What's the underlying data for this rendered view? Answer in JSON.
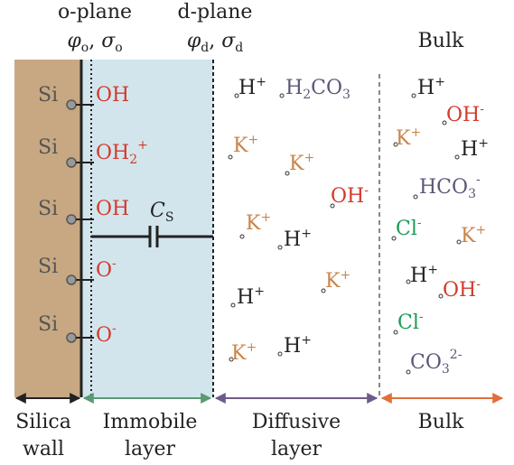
{
  "colors": {
    "wall": "#c8a882",
    "immobile": "#d3e5ec",
    "red": "#d23a2c",
    "orange": "#c8854a",
    "purple": "#5a5778",
    "green": "#1a9a55",
    "dark": "#222222",
    "grey": "#666666",
    "arrow_wall": "#222222",
    "arrow_immobile": "#5a9a72",
    "arrow_diffusive": "#6e5a8a",
    "arrow_bulk": "#e0703a"
  },
  "header": {
    "o_plane": "o-plane",
    "o_phi": "φ",
    "o_sub": "o",
    "o_sigma": "σ",
    "o_sub2": "o",
    "d_plane": "d-plane",
    "d_phi": "φ",
    "d_sub": "d",
    "d_sigma": "σ",
    "d_sub2": "d",
    "bulk": "Bulk"
  },
  "surface_sites": [
    {
      "si": "Si",
      "group": "OH",
      "sub": "",
      "sup": ""
    },
    {
      "si": "Si",
      "group": "OH",
      "sub": "2",
      "sup": "+"
    },
    {
      "si": "Si",
      "group": "OH",
      "sub": "",
      "sup": ""
    },
    {
      "si": "Si",
      "group": "O",
      "sub": "",
      "sup": "-"
    },
    {
      "si": "Si",
      "group": "O",
      "sub": "",
      "sup": "-"
    }
  ],
  "capacitor": {
    "symbol": "C",
    "sub": "S"
  },
  "diffusive_ions": [
    {
      "base": "H",
      "sup": "+",
      "color": "dark"
    },
    {
      "base": "K",
      "sup": "+",
      "color": "orange"
    },
    {
      "base": "K",
      "sup": "+",
      "color": "orange"
    },
    {
      "base": "OH",
      "sup": "-",
      "color": "red"
    },
    {
      "base": "K",
      "sup": "+",
      "color": "orange"
    },
    {
      "base": "H",
      "sup": "+",
      "color": "dark"
    },
    {
      "base": "K",
      "sup": "+",
      "color": "orange"
    },
    {
      "base": "H",
      "sup": "+",
      "color": "dark"
    },
    {
      "base": "K",
      "sup": "+",
      "color": "orange"
    },
    {
      "base": "H",
      "sup": "+",
      "color": "dark"
    }
  ],
  "carbonic_acid": {
    "a": "H",
    "b": "2",
    "c": "CO",
    "d": "3"
  },
  "bulk_ions": [
    {
      "base": "H",
      "sup": "+",
      "color": "dark"
    },
    {
      "base": "OH",
      "sup": "-",
      "color": "red"
    },
    {
      "base": "K",
      "sup": "+",
      "color": "orange"
    },
    {
      "base": "H",
      "sup": "+",
      "color": "dark"
    },
    {
      "base": "HCO",
      "sub": "3",
      "sup": "-",
      "color": "purple"
    },
    {
      "base": "Cl",
      "sup": "-",
      "color": "green"
    },
    {
      "base": "K",
      "sup": "+",
      "color": "orange"
    },
    {
      "base": "H",
      "sup": "+",
      "color": "dark"
    },
    {
      "base": "OH",
      "sup": "-",
      "color": "red"
    },
    {
      "base": "Cl",
      "sup": "-",
      "color": "green"
    },
    {
      "base": "CO",
      "sub": "3",
      "sup": "2-",
      "color": "purple"
    }
  ],
  "bottom": {
    "wall_1": "Silica",
    "wall_2": "wall",
    "immobile_1": "Immobile",
    "immobile_2": "layer",
    "diffusive_1": "Diffusive",
    "diffusive_2": "layer",
    "bulk": "Bulk"
  }
}
